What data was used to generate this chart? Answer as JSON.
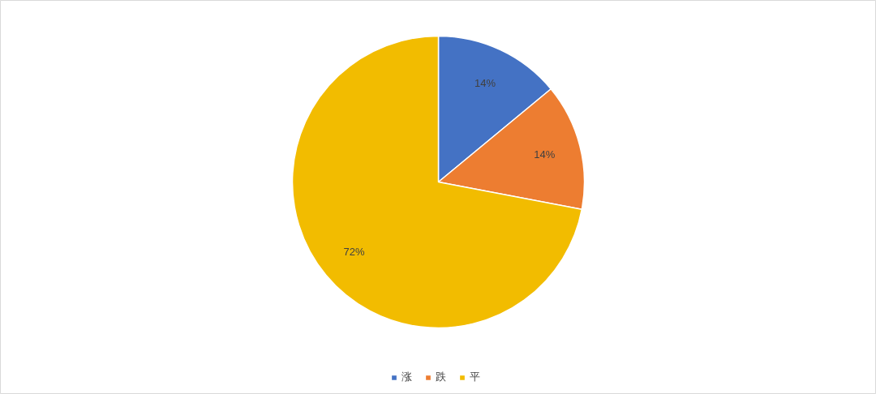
{
  "chart_data": {
    "type": "pie",
    "categories": [
      "涨",
      "跌",
      "平"
    ],
    "values": [
      14,
      14,
      72
    ],
    "colors": [
      "#4472c4",
      "#ed7d31",
      "#f2bc00"
    ],
    "value_labels": [
      "14%",
      "14%",
      "72%"
    ],
    "legend": "bottom"
  }
}
